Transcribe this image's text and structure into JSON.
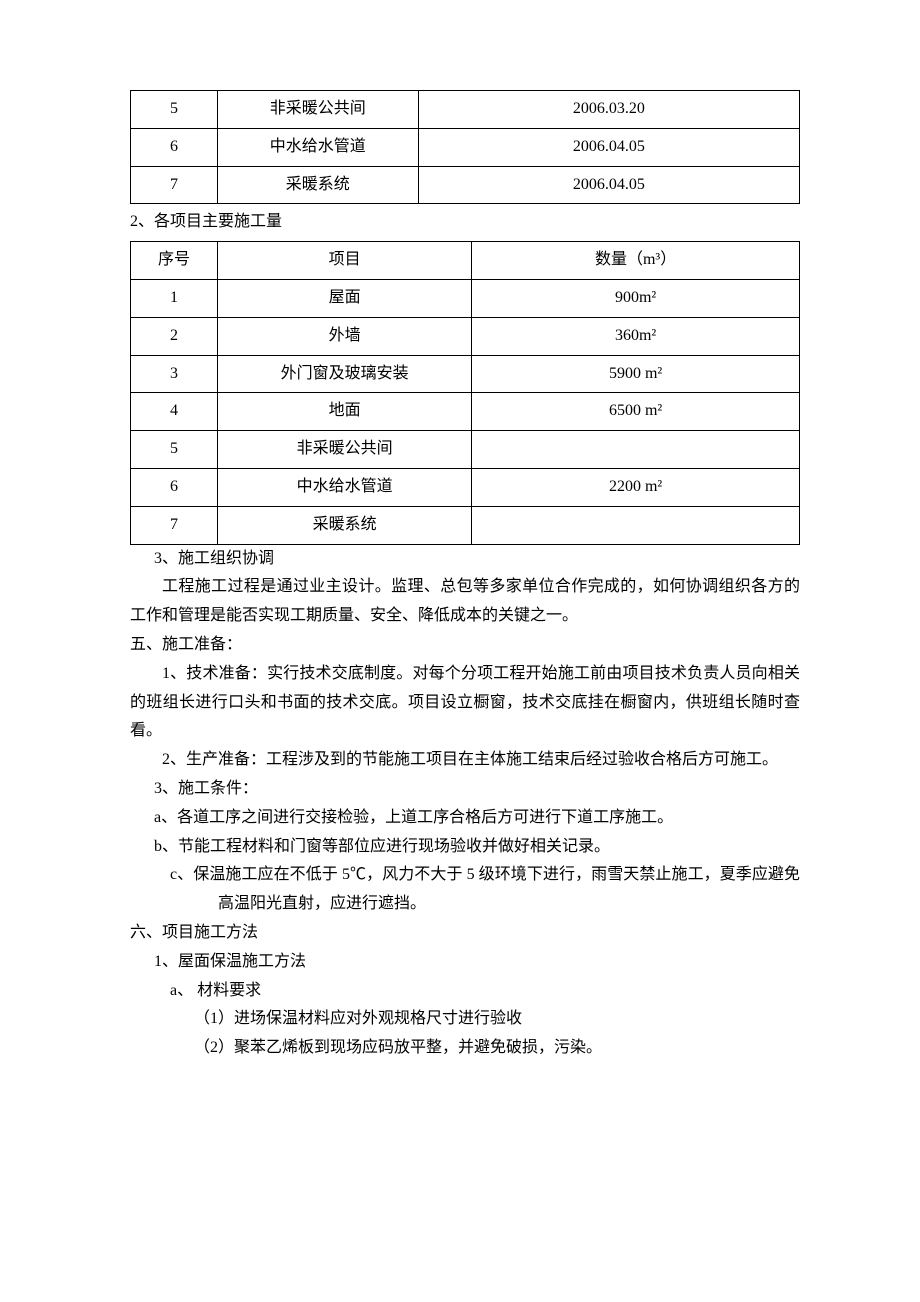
{
  "table1": {
    "rows": [
      {
        "n": "5",
        "item": "非采暖公共间",
        "date": "2006.03.20"
      },
      {
        "n": "6",
        "item": "中水给水管道",
        "date": "2006.04.05"
      },
      {
        "n": "7",
        "item": "采暖系统",
        "date": "2006.04.05"
      }
    ]
  },
  "section_label_2": "2、各项目主要施工量",
  "table2": {
    "header": {
      "n": "序号",
      "item": "项目",
      "qty": "数量（m³）"
    },
    "rows": [
      {
        "n": "1",
        "item": "屋面",
        "qty": "900m²"
      },
      {
        "n": "2",
        "item": "外墙",
        "qty": "360m²"
      },
      {
        "n": "3",
        "item": "外门窗及玻璃安装",
        "qty": "5900 m²"
      },
      {
        "n": "4",
        "item": "地面",
        "qty": "6500 m²"
      },
      {
        "n": "5",
        "item": "非采暖公共间",
        "qty": ""
      },
      {
        "n": "6",
        "item": "中水给水管道",
        "qty": "2200 m²"
      },
      {
        "n": "7",
        "item": "采暖系统",
        "qty": ""
      }
    ]
  },
  "body": {
    "s3_title": "3、施工组织协调",
    "s3_p1": "工程施工过程是通过业主设计。监理、总包等多家单位合作完成的，如何协调组织各方的工作和管理是能否实现工期质量、安全、降低成本的关键之一。",
    "h5": "五、施工准备：",
    "h5_1": "1、技术准备：实行技术交底制度。对每个分项工程开始施工前由项目技术负责人员向相关的班组长进行口头和书面的技术交底。项目设立橱窗，技术交底挂在橱窗内，供班组长随时查看。",
    "h5_2": "2、生产准备：工程涉及到的节能施工项目在主体施工结束后经过验收合格后方可施工。",
    "h5_3": "3、施工条件：",
    "h5_3a": "a、各道工序之间进行交接检验，上道工序合格后方可进行下道工序施工。",
    "h5_3b": "b、节能工程材料和门窗等部位应进行现场验收并做好相关记录。",
    "h5_3c": "c、保温施工应在不低于 5℃，风力不大于 5 级环境下进行，雨雪天禁止施工，夏季应避免高温阳光直射，应进行遮挡。",
    "h6": "六、项目施工方法",
    "h6_1": "1、屋面保温施工方法",
    "h6_1a": "a、 材料要求",
    "h6_1a1": "（1）进场保温材料应对外观规格尺寸进行验收",
    "h6_1a2": "（2）聚苯乙烯板到现场应码放平整，并避免破损，污染。"
  }
}
